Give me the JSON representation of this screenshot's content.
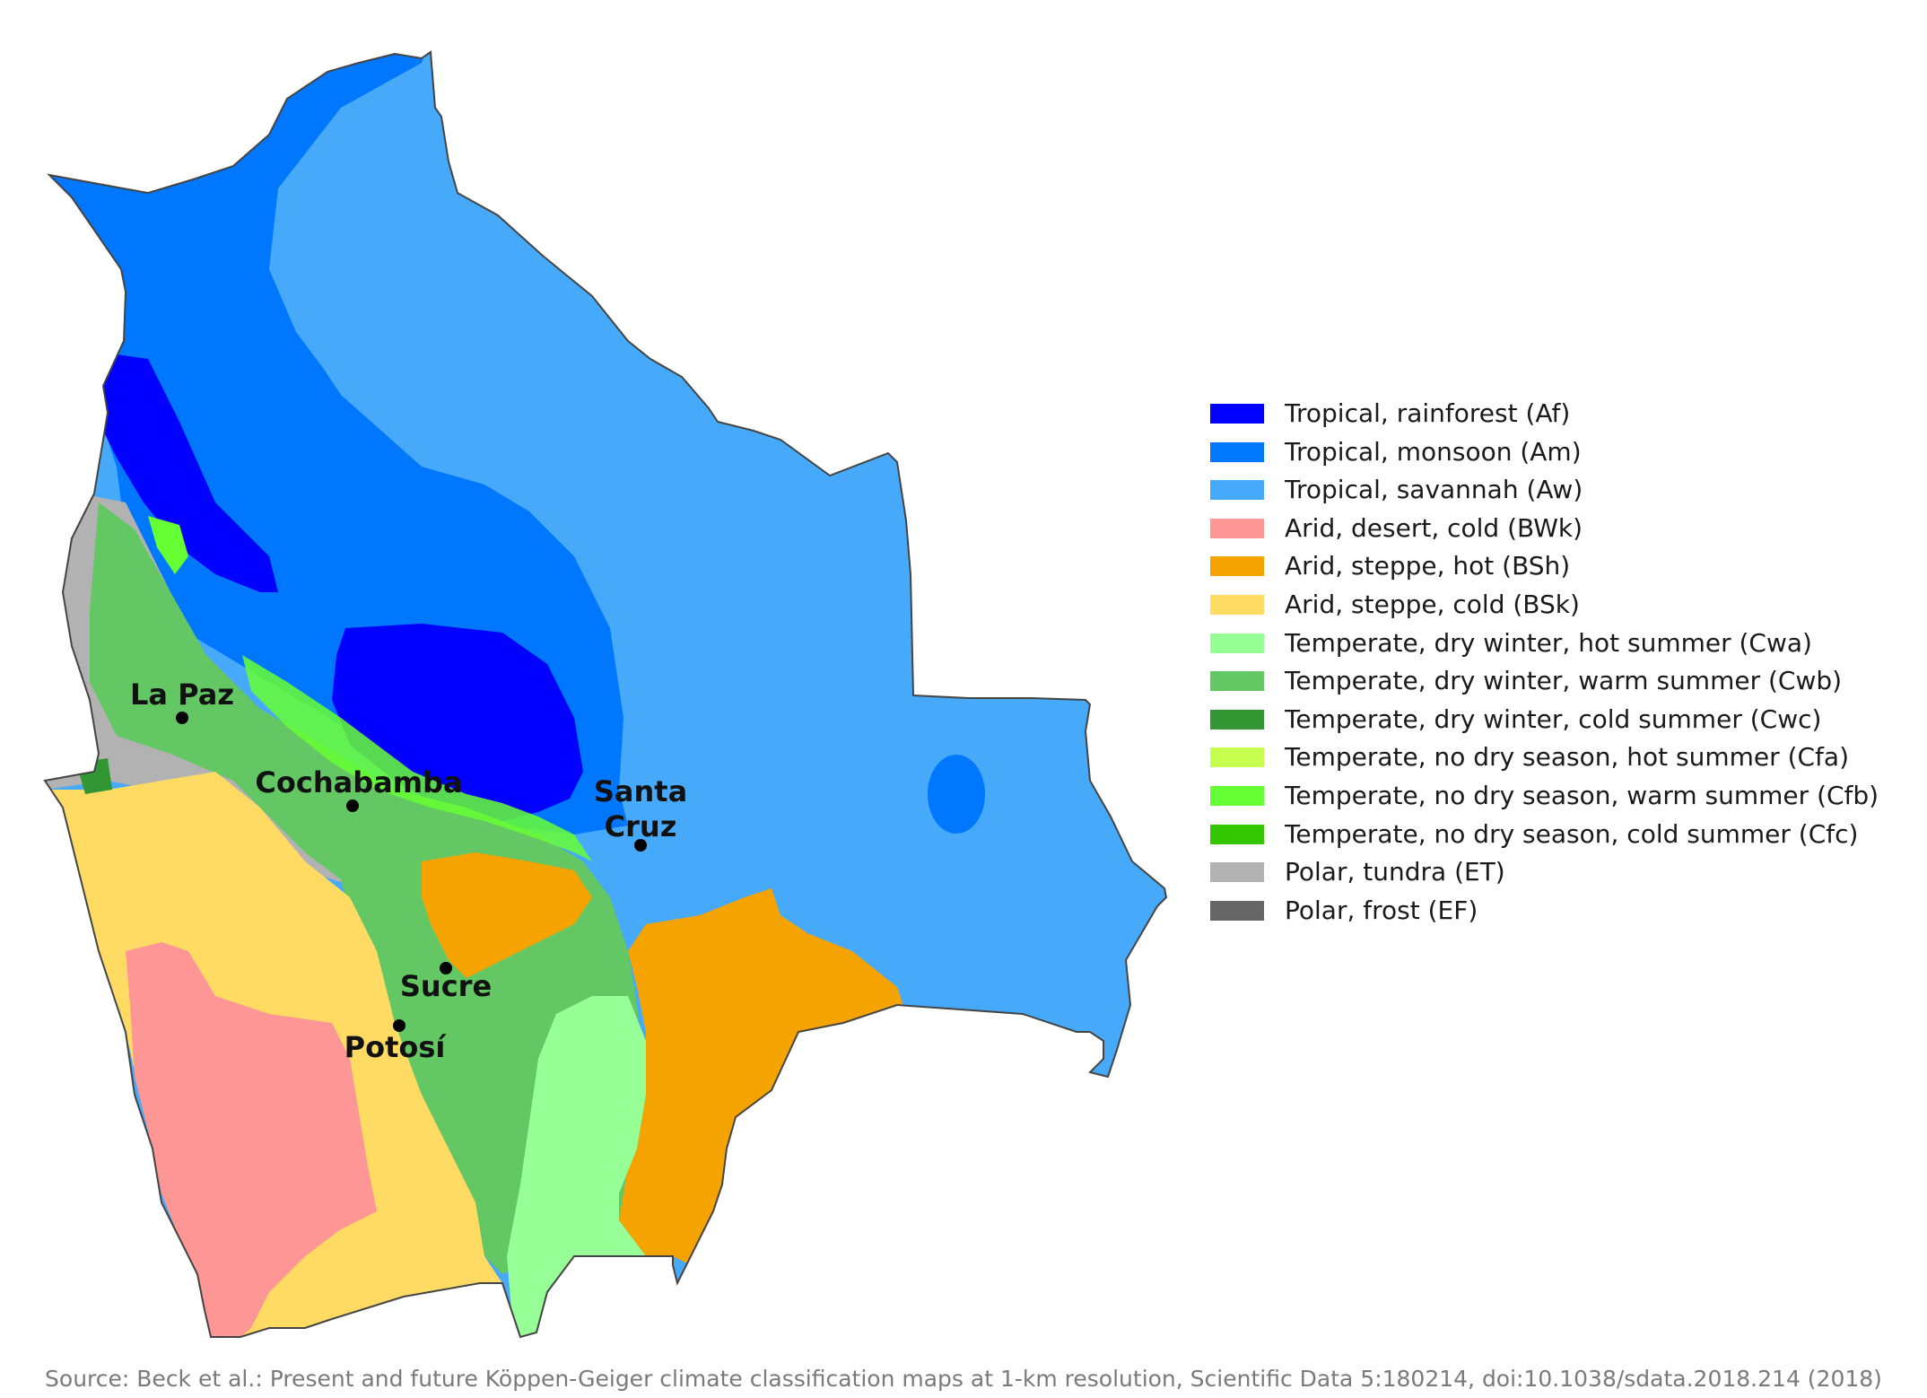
{
  "map": {
    "cities": [
      {
        "name": "La Paz"
      },
      {
        "name": "Cochabamba"
      },
      {
        "name": "Santa Cruz",
        "lines": [
          "Santa",
          "Cruz"
        ]
      },
      {
        "name": "Sucre"
      },
      {
        "name": "Potosí"
      }
    ],
    "colors": {
      "Af": "#0000fe",
      "Am": "#0077ff",
      "Aw": "#46a9fa",
      "BWk": "#fe9695",
      "BSh": "#f5a301",
      "BSk": "#ffdb63",
      "Cwa": "#96ff96",
      "Cwb": "#63c764",
      "Cwc": "#329633",
      "Cfa": "#c6ff4e",
      "Cfb": "#66ff33",
      "Cfc": "#33c701",
      "ET": "#b2b2b2",
      "EF": "#666666",
      "border": "#444444"
    }
  },
  "legend": {
    "items": [
      {
        "code": "Af",
        "label": "Tropical, rainforest (Af)",
        "color": "#0000fe"
      },
      {
        "code": "Am",
        "label": "Tropical, monsoon (Am)",
        "color": "#0077ff"
      },
      {
        "code": "Aw",
        "label": "Tropical, savannah (Aw)",
        "color": "#46a9fa"
      },
      {
        "code": "BWk",
        "label": "Arid, desert, cold (BWk)",
        "color": "#fe9695"
      },
      {
        "code": "BSh",
        "label": "Arid, steppe, hot (BSh)",
        "color": "#f5a301"
      },
      {
        "code": "BSk",
        "label": "Arid, steppe, cold (BSk)",
        "color": "#ffdb63"
      },
      {
        "code": "Cwa",
        "label": "Temperate, dry winter, hot summer (Cwa)",
        "color": "#96ff96"
      },
      {
        "code": "Cwb",
        "label": "Temperate, dry winter, warm summer (Cwb)",
        "color": "#63c764"
      },
      {
        "code": "Cwc",
        "label": "Temperate, dry winter, cold summer (Cwc)",
        "color": "#329633"
      },
      {
        "code": "Cfa",
        "label": "Temperate, no dry season, hot summer (Cfa)",
        "color": "#c6ff4e"
      },
      {
        "code": "Cfb",
        "label": "Temperate, no dry season, warm summer (Cfb)",
        "color": "#66ff33"
      },
      {
        "code": "Cfc",
        "label": "Temperate, no dry season, cold summer (Cfc)",
        "color": "#33c701"
      },
      {
        "code": "ET",
        "label": "Polar, tundra (ET)",
        "color": "#b2b2b2"
      },
      {
        "code": "EF",
        "label": "Polar, frost (EF)",
        "color": "#666666"
      }
    ]
  },
  "source": "Source: Beck et al.: Present and future Köppen-Geiger climate classification maps at 1-km resolution, Scientific Data 5:180214, doi:10.1038/sdata.2018.214 (2018)"
}
